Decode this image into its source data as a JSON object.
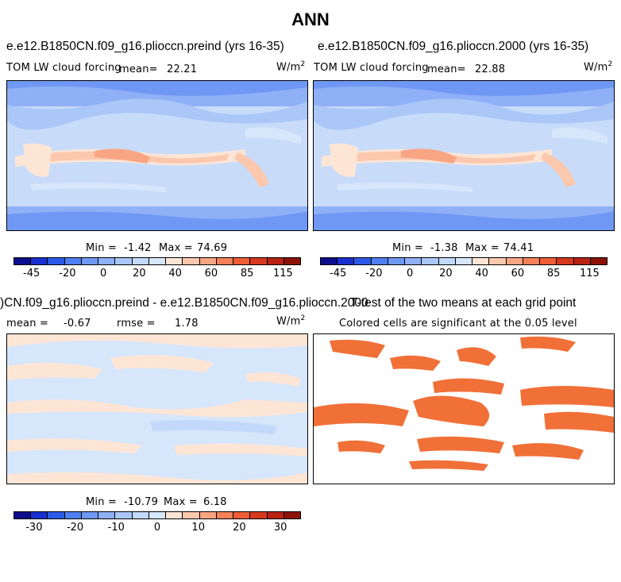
{
  "title": "ANN",
  "panels": {
    "top_left": {
      "title": "e.e12.B1850CN.f09_g16.plioccn.preind (yrs 16-35)",
      "variable": "TOM LW cloud forcing",
      "mean_label": "mean=",
      "mean_value": "22.21",
      "units": "W/m",
      "units_exp": "2",
      "min_label": "Min =",
      "min_value": "-1.42",
      "max_label": "Max =",
      "max_value": "74.69"
    },
    "top_right": {
      "title": "e.e12.B1850CN.f09_g16.plioccn.2000 (yrs 16-35)",
      "variable": "TOM LW cloud forcing",
      "mean_label": "mean=",
      "mean_value": "22.88",
      "units": "W/m",
      "units_exp": "2",
      "min_label": "Min =",
      "min_value": "-1.38",
      "max_label": "Max =",
      "max_value": "74.41"
    },
    "bottom_left": {
      "title": ")CN.f09_g16.plioccn.preind - e.e12.B1850CN.f09_g16.plioccn.2000",
      "mean_label": "mean =",
      "mean_value": "-0.67",
      "rmse_label": "rmse =",
      "rmse_value": "1.78",
      "units": "W/m",
      "units_exp": "2",
      "min_label": "Min =",
      "min_value": "-10.79",
      "max_label": "Max =",
      "max_value": "6.18"
    },
    "bottom_right": {
      "title": "T-test of the two means at each grid point",
      "subtitle": "Colored cells are significant at the 0.05 level",
      "sig_color": "#f07038"
    }
  },
  "colorbar_top": {
    "colors": [
      "#0d0d8c",
      "#1a2fd0",
      "#2c5ae8",
      "#4f7ff0",
      "#6f98f4",
      "#8fb0f6",
      "#aac7f8",
      "#c2d9fb",
      "#d6e6fb",
      "#fde5d6",
      "#fbc7ad",
      "#f8a584",
      "#f48158",
      "#ef5d35",
      "#d8381d",
      "#b82314",
      "#8c1107"
    ],
    "tick_labels": [
      "-45",
      "-20",
      "0",
      "20",
      "40",
      "60",
      "85",
      "115"
    ]
  },
  "colorbar_bottom": {
    "colors": [
      "#0d0d8c",
      "#1a2fd0",
      "#2c5ae8",
      "#4f7ff0",
      "#6f98f4",
      "#8fb0f6",
      "#aac7f8",
      "#c2d9fb",
      "#d6e6fb",
      "#fde5d6",
      "#fbc7ad",
      "#f8a584",
      "#f48158",
      "#ef5d35",
      "#d8381d",
      "#b82314",
      "#8c1107"
    ],
    "tick_labels": [
      "-30",
      "-20",
      "-10",
      "0",
      "10",
      "20",
      "30"
    ]
  }
}
